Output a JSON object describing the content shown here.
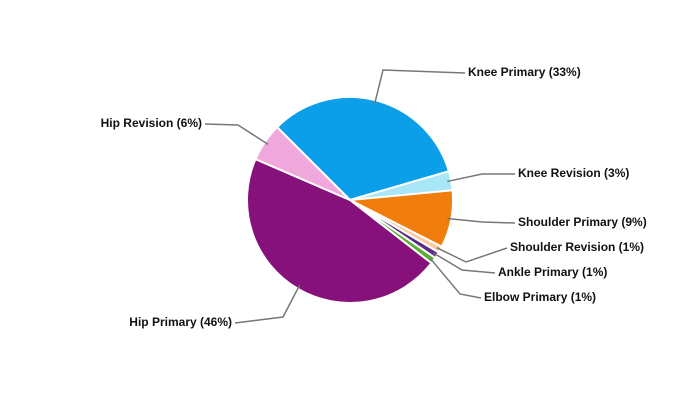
{
  "chart_data": {
    "type": "pie",
    "values": [
      33,
      3,
      9,
      1,
      1,
      1,
      46,
      6
    ],
    "value_labels": [
      "Knee Primary (33%)",
      "Knee Revision (3%)",
      "Shoulder Primary (9%)",
      "Shoulder Revision (1%)",
      "Ankle Primary (1%)",
      "Elbow Primary (1%)",
      "Hip Primary (46%)",
      "Hip Revision (6%)"
    ],
    "colors": [
      "#0a9fe8",
      "#a8e6f8",
      "#f07d0c",
      "#fbcaa2",
      "#5b2b86",
      "#5aae32",
      "#86117b",
      "#f0a8dc"
    ]
  }
}
